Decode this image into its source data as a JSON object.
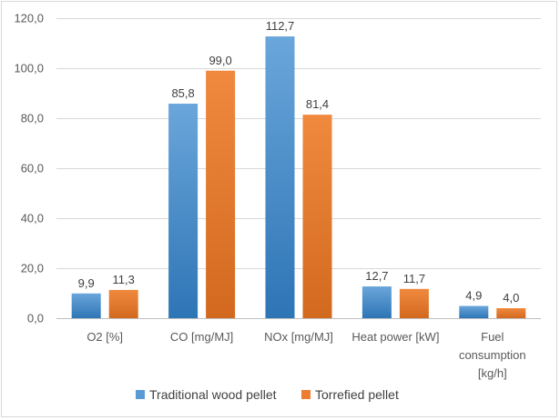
{
  "chart_data": {
    "type": "bar",
    "categories": [
      [
        "O2 [%]"
      ],
      [
        "CO [mg/MJ]"
      ],
      [
        "NOx [mg/MJ]"
      ],
      [
        "Heat power [kW]"
      ],
      [
        "Fuel",
        "consumption",
        "[kg/h]"
      ]
    ],
    "series": [
      {
        "name": "Traditional wood pellet",
        "values": [
          9.9,
          85.8,
          112.7,
          12.7,
          4.9
        ],
        "labels": [
          "9,9",
          "85,8",
          "112,7",
          "12,7",
          "4,9"
        ]
      },
      {
        "name": "Torrefied pellet",
        "values": [
          11.3,
          99.0,
          81.4,
          11.7,
          4.0
        ],
        "labels": [
          "11,3",
          "99,0",
          "81,4",
          "11,7",
          "4,0"
        ]
      }
    ],
    "yticks": [
      "0,0",
      "20,0",
      "40,0",
      "60,0",
      "80,0",
      "100,0",
      "120,0"
    ],
    "ylim": [
      0,
      120
    ],
    "grid": true,
    "legend_position": "bottom",
    "colors": {
      "Traditional wood pellet": "#5b9bd5",
      "Torrefied pellet": "#ed7d31"
    }
  }
}
